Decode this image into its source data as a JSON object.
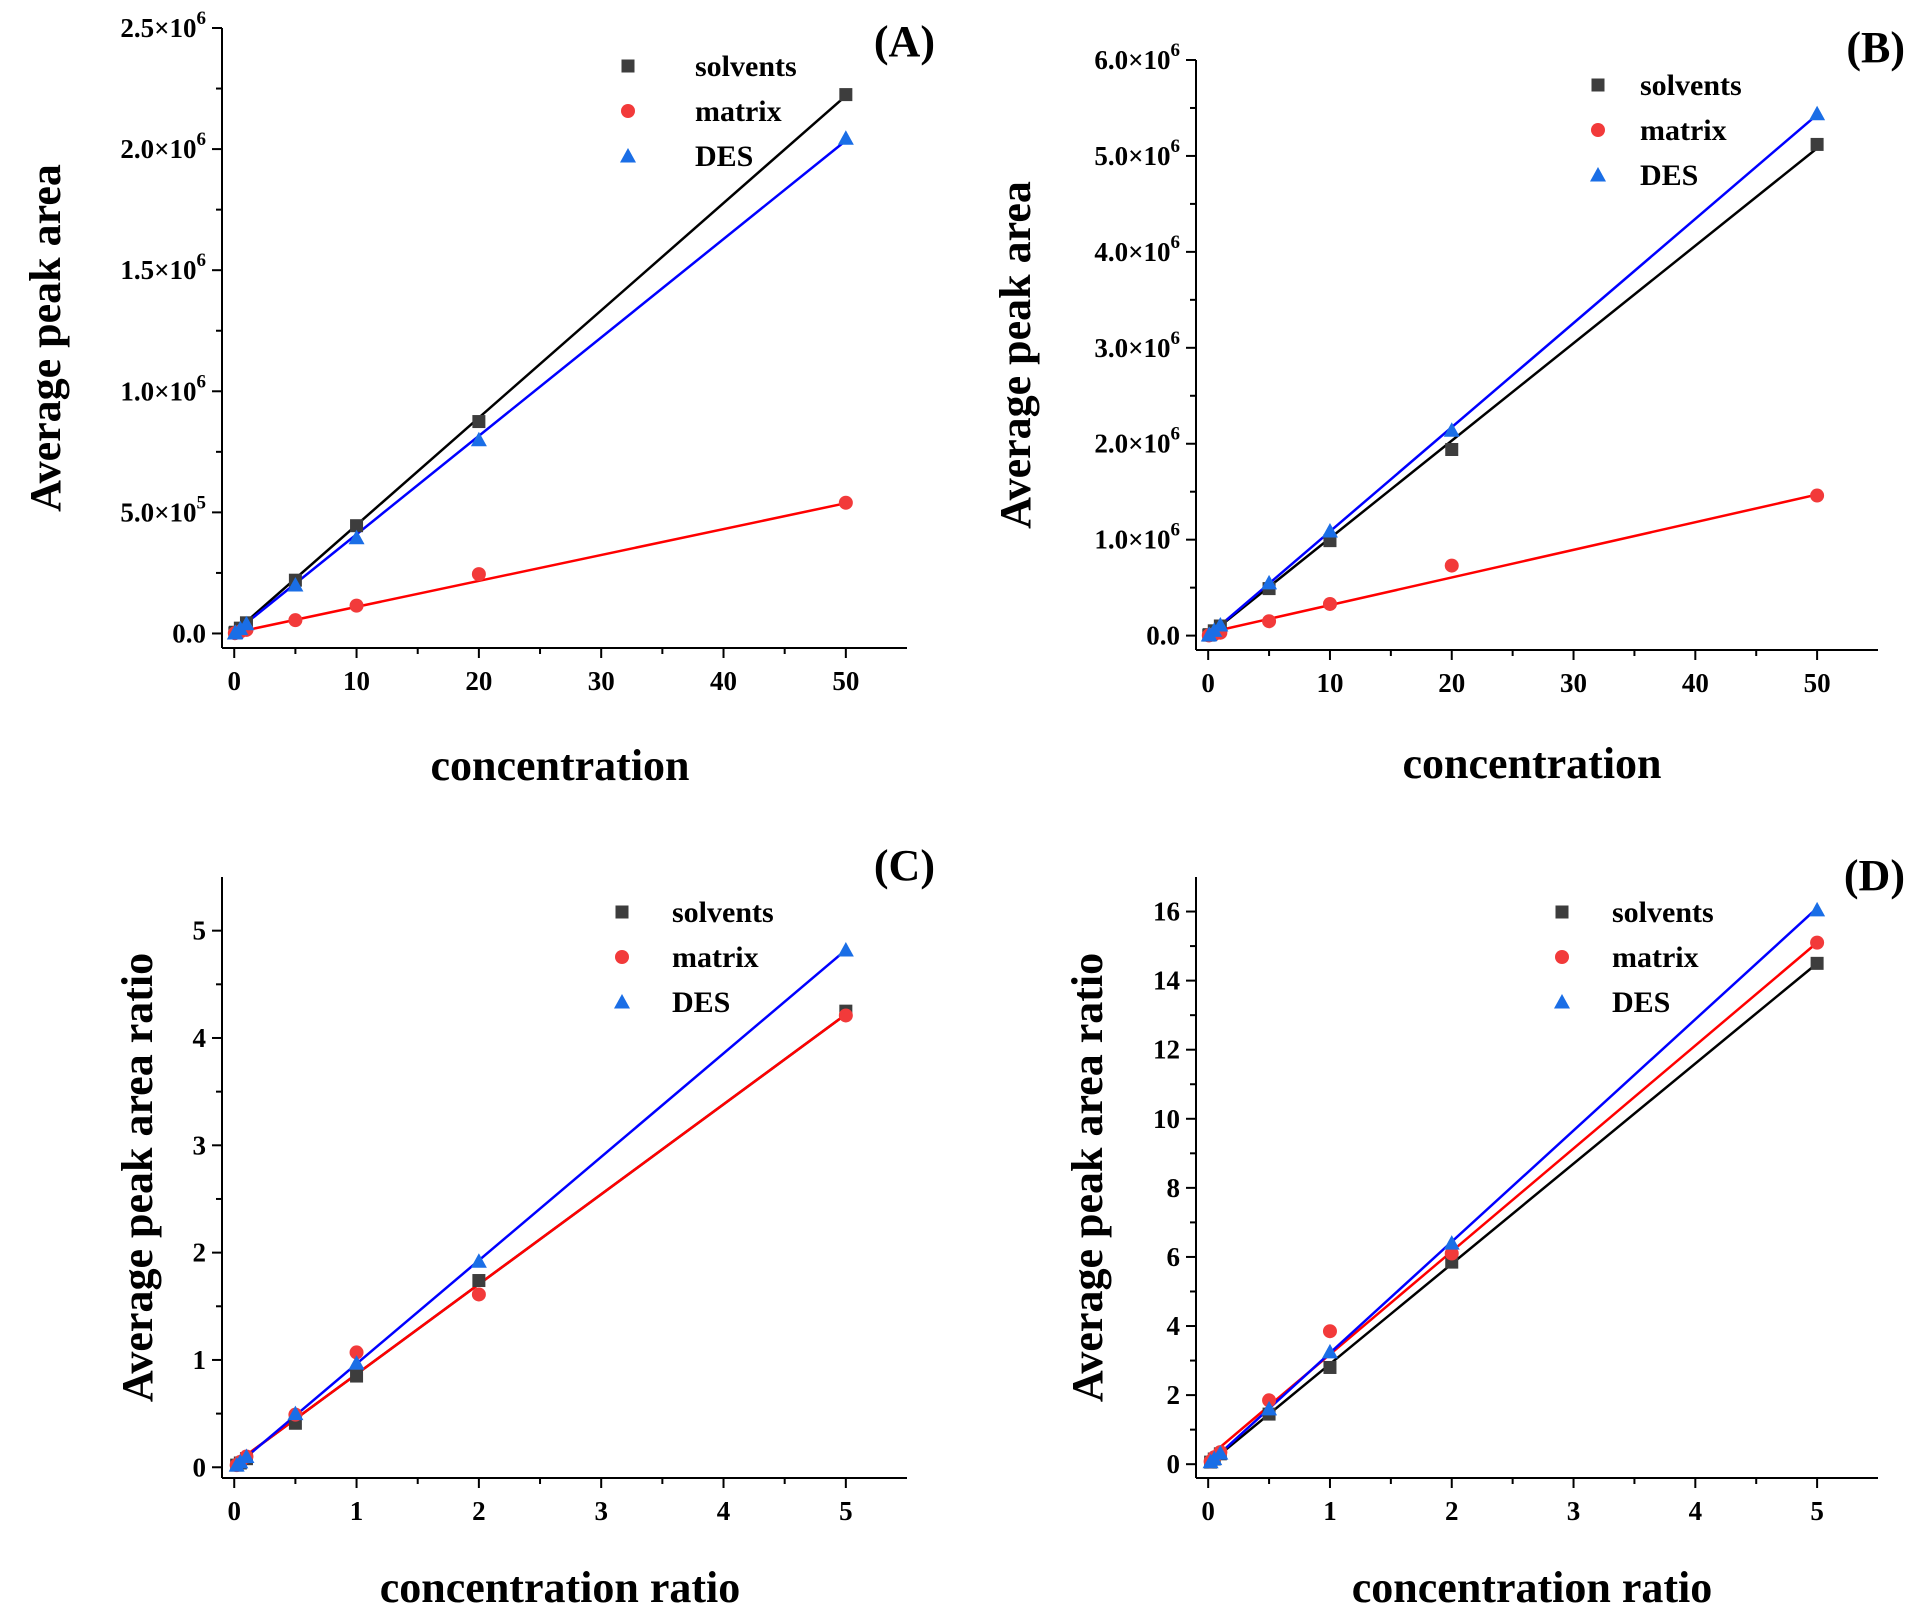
{
  "colors": {
    "solvents": "#3d3d3d",
    "matrix": "#f23a3a",
    "DES": "#1a6ee6",
    "solvents_line": "#000000",
    "matrix_line": "#ff0000",
    "DES_line": "#0000ff"
  },
  "chart_data": [
    {
      "type": "scatter",
      "panel": "(A)",
      "xlabel": "concentration",
      "ylabel": "Average peak area",
      "xlim": [
        -1,
        55
      ],
      "ylim": [
        -60000,
        2500000
      ],
      "xticks": [
        0,
        10,
        20,
        30,
        40,
        50
      ],
      "xtick_labels": [
        "0",
        "10",
        "20",
        "30",
        "40",
        "50"
      ],
      "yticks": [
        0,
        500000,
        1000000,
        1500000,
        2000000,
        2500000
      ],
      "ytick_labels": [
        {
          "base": "0.0",
          "exp": ""
        },
        {
          "base": "5.0×10",
          "exp": "5"
        },
        {
          "base": "1.0×10",
          "exp": "6"
        },
        {
          "base": "1.5×10",
          "exp": "6"
        },
        {
          "base": "2.0×10",
          "exp": "6"
        },
        {
          "base": "2.5×10",
          "exp": "6"
        }
      ],
      "legend": [
        "solvents",
        "matrix",
        "DES"
      ],
      "series": [
        {
          "name": "solvents",
          "x": [
            0.05,
            0.1,
            0.5,
            1,
            5,
            10,
            20,
            50
          ],
          "y": [
            2000,
            5000,
            22000,
            44000,
            220000,
            445000,
            875000,
            2225000
          ],
          "fit": [
            0,
            5000,
            50,
            2220000
          ]
        },
        {
          "name": "matrix",
          "x": [
            0.05,
            0.1,
            0.5,
            1,
            5,
            10,
            20,
            50
          ],
          "y": [
            1000,
            2000,
            8000,
            15000,
            55000,
            115000,
            245000,
            540000
          ],
          "fit": [
            0,
            3000,
            50,
            538000
          ]
        },
        {
          "name": "DES",
          "x": [
            0.05,
            0.1,
            0.5,
            1,
            5,
            10,
            20,
            50
          ],
          "y": [
            2000,
            4000,
            20000,
            40000,
            200000,
            395000,
            800000,
            2045000
          ],
          "fit": [
            0,
            3000,
            50,
            2035000
          ]
        }
      ]
    },
    {
      "type": "scatter",
      "panel": "(B)",
      "xlabel": "concentration",
      "ylabel": "Average peak area",
      "xlim": [
        -1,
        55
      ],
      "ylim": [
        -150000,
        6000000
      ],
      "xticks": [
        0,
        10,
        20,
        30,
        40,
        50
      ],
      "xtick_labels": [
        "0",
        "10",
        "20",
        "30",
        "40",
        "50"
      ],
      "yticks": [
        0,
        1000000,
        2000000,
        3000000,
        4000000,
        5000000,
        6000000
      ],
      "ytick_labels": [
        {
          "base": "0.0",
          "exp": ""
        },
        {
          "base": "1.0×10",
          "exp": "6"
        },
        {
          "base": "2.0×10",
          "exp": "6"
        },
        {
          "base": "3.0×10",
          "exp": "6"
        },
        {
          "base": "4.0×10",
          "exp": "6"
        },
        {
          "base": "5.0×10",
          "exp": "6"
        },
        {
          "base": "6.0×10",
          "exp": "6"
        }
      ],
      "legend": [
        "solvents",
        "matrix",
        "DES"
      ],
      "series": [
        {
          "name": "solvents",
          "x": [
            0.05,
            0.1,
            0.5,
            1,
            5,
            10,
            20,
            50
          ],
          "y": [
            5000,
            10000,
            50000,
            100000,
            490000,
            990000,
            1940000,
            5120000
          ],
          "fit": [
            0,
            0,
            50,
            5080000
          ]
        },
        {
          "name": "matrix",
          "x": [
            0.05,
            0.1,
            0.5,
            1,
            5,
            10,
            20,
            50
          ],
          "y": [
            2000,
            4000,
            15000,
            30000,
            150000,
            330000,
            730000,
            1460000
          ],
          "fit": [
            0,
            30000,
            50,
            1470000
          ]
        },
        {
          "name": "DES",
          "x": [
            0.05,
            0.1,
            0.5,
            1,
            5,
            10,
            20,
            50
          ],
          "y": [
            6000,
            11000,
            55000,
            110000,
            550000,
            1090000,
            2140000,
            5440000
          ],
          "fit": [
            0,
            0,
            50,
            5430000
          ]
        }
      ]
    },
    {
      "type": "scatter",
      "panel": "(C)",
      "xlabel": "concentration ratio",
      "ylabel": "Average peak area ratio",
      "xlim": [
        -0.1,
        5.5
      ],
      "ylim": [
        -0.1,
        5.5
      ],
      "xticks": [
        0,
        1,
        2,
        3,
        4,
        5
      ],
      "xtick_labels": [
        "0",
        "1",
        "2",
        "3",
        "4",
        "5"
      ],
      "yticks": [
        0,
        1,
        2,
        3,
        4,
        5
      ],
      "ytick_labels": [
        {
          "base": "0",
          "exp": ""
        },
        {
          "base": "1",
          "exp": ""
        },
        {
          "base": "2",
          "exp": ""
        },
        {
          "base": "3",
          "exp": ""
        },
        {
          "base": "4",
          "exp": ""
        },
        {
          "base": "5",
          "exp": ""
        }
      ],
      "legend": [
        "solvents",
        "matrix",
        "DES"
      ],
      "series": [
        {
          "name": "solvents",
          "x": [
            0.02,
            0.05,
            0.1,
            0.5,
            1,
            2,
            5
          ],
          "y": [
            0.02,
            0.04,
            0.08,
            0.41,
            0.85,
            1.74,
            4.25
          ],
          "fit": [
            0,
            0.03,
            5,
            4.22
          ]
        },
        {
          "name": "matrix",
          "x": [
            0.02,
            0.05,
            0.1,
            0.5,
            1,
            2,
            5
          ],
          "y": [
            0.02,
            0.05,
            0.1,
            0.49,
            1.07,
            1.61,
            4.21
          ],
          "fit": [
            0,
            0.03,
            5,
            4.22
          ]
        },
        {
          "name": "DES",
          "x": [
            0.02,
            0.05,
            0.1,
            0.5,
            1,
            2,
            5
          ],
          "y": [
            0.02,
            0.05,
            0.1,
            0.5,
            0.97,
            1.92,
            4.82
          ],
          "fit": [
            0,
            0.0,
            5,
            4.82
          ]
        }
      ]
    },
    {
      "type": "scatter",
      "panel": "(D)",
      "xlabel": "concentration ratio",
      "ylabel": "Average peak area ratio",
      "xlim": [
        -0.1,
        5.5
      ],
      "ylim": [
        -0.4,
        17
      ],
      "xticks": [
        0,
        1,
        2,
        3,
        4,
        5
      ],
      "xtick_labels": [
        "0",
        "1",
        "2",
        "3",
        "4",
        "5"
      ],
      "yticks": [
        0,
        2,
        4,
        6,
        8,
        10,
        12,
        14,
        16
      ],
      "ytick_labels": [
        {
          "base": "0",
          "exp": ""
        },
        {
          "base": "2",
          "exp": ""
        },
        {
          "base": "4",
          "exp": ""
        },
        {
          "base": "6",
          "exp": ""
        },
        {
          "base": "8",
          "exp": ""
        },
        {
          "base": "10",
          "exp": ""
        },
        {
          "base": "12",
          "exp": ""
        },
        {
          "base": "14",
          "exp": ""
        },
        {
          "base": "16",
          "exp": ""
        }
      ],
      "legend": [
        "solvents",
        "matrix",
        "DES"
      ],
      "series": [
        {
          "name": "solvents",
          "x": [
            0.02,
            0.05,
            0.1,
            0.5,
            1,
            2,
            5
          ],
          "y": [
            0.06,
            0.15,
            0.3,
            1.45,
            2.8,
            5.85,
            14.5
          ],
          "fit": [
            0,
            0.0,
            5,
            14.5
          ]
        },
        {
          "name": "matrix",
          "x": [
            0.02,
            0.05,
            0.1,
            0.5,
            1,
            2,
            5
          ],
          "y": [
            0.08,
            0.2,
            0.35,
            1.85,
            3.85,
            6.1,
            15.1
          ],
          "fit": [
            0,
            0.2,
            5,
            15.1
          ]
        },
        {
          "name": "DES",
          "x": [
            0.02,
            0.05,
            0.1,
            0.5,
            1,
            2,
            5
          ],
          "y": [
            0.07,
            0.16,
            0.32,
            1.6,
            3.25,
            6.4,
            16.05
          ],
          "fit": [
            0,
            0.0,
            5,
            16.1
          ]
        }
      ]
    }
  ]
}
